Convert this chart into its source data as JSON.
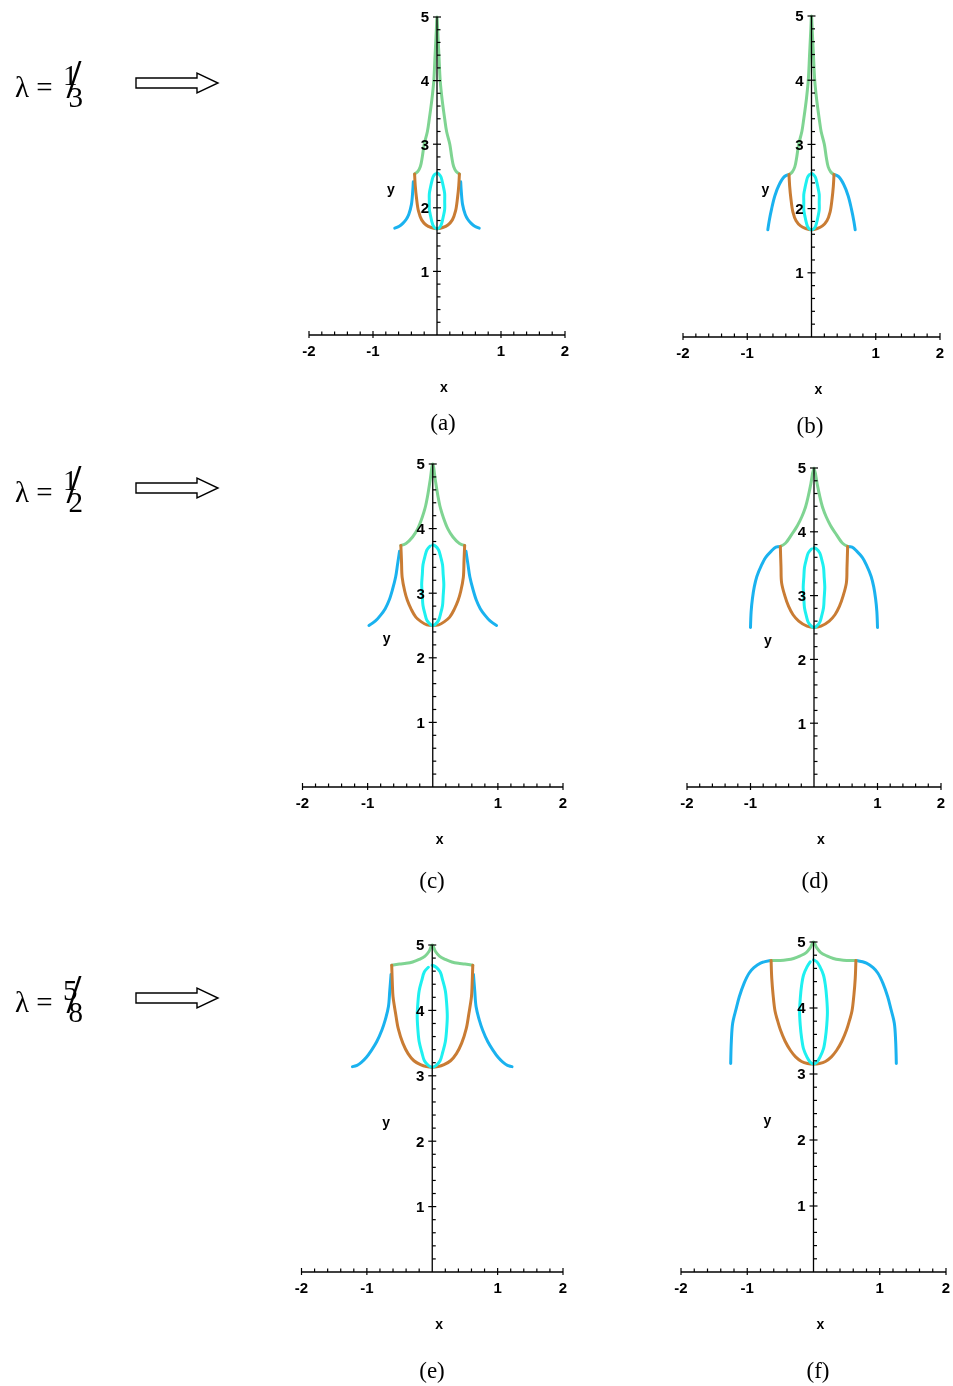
{
  "chart_data": [
    {
      "type": "line",
      "title": "(a)",
      "xlabel": "x",
      "ylabel": "y",
      "annotations": [
        "λ = $^{1}$/$_{3}$"
      ],
      "xlim": [
        -2,
        2
      ],
      "ylim": [
        0,
        5
      ],
      "xticks": [
        -2,
        {
          "value": -1.8,
          "label": null
        },
        {
          "value": -1.6,
          "label": null
        },
        {
          "value": -1.4,
          "label": null
        },
        {
          "value": -1.2,
          "label": null
        },
        -1,
        {
          "value": -0.8,
          "label": null
        },
        {
          "value": -0.6,
          "label": null
        },
        {
          "value": -0.4,
          "label": null
        },
        {
          "value": -0.2,
          "label": null
        },
        {
          "value": 0.2,
          "label": null
        },
        {
          "value": 0.4,
          "label": null
        },
        {
          "value": 0.6,
          "label": null
        },
        {
          "value": 0.8,
          "label": null
        },
        1,
        {
          "value": 1.2,
          "label": null
        },
        {
          "value": 1.4,
          "label": null
        },
        {
          "value": 1.6,
          "label": null
        },
        {
          "value": 1.8,
          "label": null
        },
        2
      ],
      "yticks": [
        {
          "value": 0.2,
          "label": null
        },
        {
          "value": 0.4,
          "label": null
        },
        {
          "value": 0.6,
          "label": null
        },
        {
          "value": 0.8,
          "label": null
        },
        1,
        {
          "value": 1.2,
          "label": null
        },
        {
          "value": 1.4,
          "label": null
        },
        {
          "value": 1.6,
          "label": null
        },
        {
          "value": 1.8,
          "label": null
        },
        2,
        {
          "value": 2.2,
          "label": null
        },
        {
          "value": 2.4,
          "label": null
        },
        {
          "value": 2.6,
          "label": null
        },
        {
          "value": 2.8,
          "label": null
        },
        3,
        {
          "value": 3.2,
          "label": null
        },
        {
          "value": 3.4,
          "label": null
        },
        {
          "value": 3.6,
          "label": null
        },
        {
          "value": 3.8,
          "label": null
        },
        4,
        {
          "value": 4.2,
          "label": null
        },
        {
          "value": 4.4,
          "label": null
        },
        {
          "value": 4.6,
          "label": null
        },
        {
          "value": 4.8,
          "label": null
        },
        5
      ],
      "series": [
        {
          "color": "#1ab2ef",
          "x": [
            -0.66,
            -0.59,
            -0.53,
            -0.48,
            -0.44,
            -0.4,
            -0.38,
            -0.37
          ],
          "values": [
            1.68,
            1.71,
            1.76,
            1.82,
            1.9,
            2.05,
            2.25,
            2.41
          ]
        },
        {
          "color": "#1ab2ef",
          "x": [
            0.37,
            0.38,
            0.4,
            0.44,
            0.48,
            0.53,
            0.59,
            0.66
          ],
          "values": [
            2.41,
            2.25,
            2.05,
            1.9,
            1.82,
            1.76,
            1.71,
            1.68
          ]
        },
        {
          "color": "#7fd492",
          "x": [
            -0.35,
            -0.3,
            -0.26,
            -0.23,
            -0.2,
            -0.15,
            -0.12,
            -0.08,
            -0.05,
            -0.03,
            -0.01,
            0,
            0.01,
            0.03,
            0.05,
            0.08,
            0.12,
            0.15,
            0.2,
            0.23,
            0.26,
            0.3,
            0.35
          ],
          "values": [
            2.53,
            2.57,
            2.65,
            2.8,
            3.0,
            3.2,
            3.4,
            3.7,
            4.0,
            4.4,
            4.8,
            5,
            4.8,
            4.4,
            4.0,
            3.7,
            3.4,
            3.2,
            3.0,
            2.8,
            2.65,
            2.57,
            2.53
          ]
        },
        {
          "color": "#c97c34",
          "x": [
            -0.35,
            -0.34,
            -0.32,
            -0.29,
            -0.24,
            -0.17,
            -0.09,
            0,
            0.09,
            0.17,
            0.24,
            0.29,
            0.32,
            0.34,
            0.35
          ],
          "values": [
            2.53,
            2.35,
            2.15,
            1.95,
            1.81,
            1.73,
            1.69,
            1.67,
            1.69,
            1.73,
            1.81,
            1.95,
            2.15,
            2.35,
            2.53
          ]
        },
        {
          "color": "#1ef0f0",
          "x": [
            0,
            0.03,
            0.06,
            0.08,
            0.1,
            0.12,
            0.12,
            0.12,
            0.1,
            0.08,
            0.06,
            0.03,
            0,
            -0.03,
            -0.06,
            -0.08,
            -0.1,
            -0.12,
            -0.12,
            -0.12,
            -0.1,
            -0.08,
            -0.06,
            -0.03
          ],
          "values": [
            2.55,
            2.53,
            2.49,
            2.42,
            2.33,
            2.22,
            2.1,
            1.98,
            1.87,
            1.78,
            1.72,
            1.68,
            1.67,
            1.68,
            1.72,
            1.78,
            1.87,
            1.98,
            2.1,
            2.22,
            2.33,
            2.42,
            2.49,
            2.53
          ]
        }
      ]
    },
    {
      "type": "line",
      "title": "(b)",
      "xlabel": "x",
      "ylabel": "y",
      "xlim": [
        -2,
        2
      ],
      "ylim": [
        0,
        5
      ],
      "xticks": [
        -2,
        {
          "value": -1.8,
          "label": null
        },
        {
          "value": -1.6,
          "label": null
        },
        {
          "value": -1.4,
          "label": null
        },
        {
          "value": -1.2,
          "label": null
        },
        -1,
        {
          "value": -0.8,
          "label": null
        },
        {
          "value": -0.6,
          "label": null
        },
        {
          "value": -0.4,
          "label": null
        },
        {
          "value": -0.2,
          "label": null
        },
        {
          "value": 0.2,
          "label": null
        },
        {
          "value": 0.4,
          "label": null
        },
        {
          "value": 0.6,
          "label": null
        },
        {
          "value": 0.8,
          "label": null
        },
        1,
        {
          "value": 1.2,
          "label": null
        },
        {
          "value": 1.4,
          "label": null
        },
        {
          "value": 1.6,
          "label": null
        },
        {
          "value": 1.8,
          "label": null
        },
        2
      ],
      "yticks": [
        {
          "value": 0.2,
          "label": null
        },
        {
          "value": 0.4,
          "label": null
        },
        {
          "value": 0.6,
          "label": null
        },
        {
          "value": 0.8,
          "label": null
        },
        1,
        {
          "value": 1.2,
          "label": null
        },
        {
          "value": 1.4,
          "label": null
        },
        {
          "value": 1.6,
          "label": null
        },
        {
          "value": 1.8,
          "label": null
        },
        2,
        {
          "value": 2.2,
          "label": null
        },
        {
          "value": 2.4,
          "label": null
        },
        {
          "value": 2.6,
          "label": null
        },
        {
          "value": 2.8,
          "label": null
        },
        3,
        {
          "value": 3.2,
          "label": null
        },
        {
          "value": 3.4,
          "label": null
        },
        {
          "value": 3.6,
          "label": null
        },
        {
          "value": 3.8,
          "label": null
        },
        4,
        {
          "value": 4.2,
          "label": null
        },
        {
          "value": 4.4,
          "label": null
        },
        {
          "value": 4.6,
          "label": null
        },
        {
          "value": 4.8,
          "label": null
        },
        5
      ],
      "series": [
        {
          "color": "#1ab2ef",
          "x": [
            -0.68,
            -0.66,
            -0.62,
            -0.57,
            -0.5,
            -0.42,
            -0.35
          ],
          "values": [
            1.67,
            1.8,
            2.0,
            2.2,
            2.38,
            2.5,
            2.53
          ]
        },
        {
          "color": "#1ab2ef",
          "x": [
            0.35,
            0.42,
            0.5,
            0.57,
            0.62,
            0.66,
            0.68
          ],
          "values": [
            2.53,
            2.5,
            2.38,
            2.2,
            2.0,
            1.8,
            1.67
          ]
        },
        {
          "color": "#7fd492",
          "x": [
            -0.35,
            -0.3,
            -0.26,
            -0.23,
            -0.2,
            -0.15,
            -0.12,
            -0.08,
            -0.05,
            -0.03,
            -0.01,
            0,
            0.01,
            0.03,
            0.05,
            0.08,
            0.12,
            0.15,
            0.2,
            0.23,
            0.26,
            0.3,
            0.35
          ],
          "values": [
            2.53,
            2.57,
            2.65,
            2.8,
            3.0,
            3.2,
            3.4,
            3.7,
            4.0,
            4.4,
            4.8,
            5,
            4.8,
            4.4,
            4.0,
            3.7,
            3.4,
            3.2,
            3.0,
            2.8,
            2.65,
            2.57,
            2.53
          ]
        },
        {
          "color": "#c97c34",
          "x": [
            -0.35,
            -0.34,
            -0.32,
            -0.29,
            -0.24,
            -0.17,
            -0.09,
            0,
            0.09,
            0.17,
            0.24,
            0.29,
            0.32,
            0.34,
            0.35
          ],
          "values": [
            2.53,
            2.35,
            2.15,
            1.95,
            1.81,
            1.73,
            1.69,
            1.67,
            1.69,
            1.73,
            1.81,
            1.95,
            2.15,
            2.35,
            2.53
          ]
        },
        {
          "color": "#1ef0f0",
          "x": [
            0,
            0.03,
            0.06,
            0.08,
            0.1,
            0.12,
            0.12,
            0.12,
            0.1,
            0.08,
            0.06,
            0.03,
            0,
            -0.03,
            -0.06,
            -0.08,
            -0.1,
            -0.12,
            -0.12,
            -0.12,
            -0.1,
            -0.08,
            -0.06,
            -0.03
          ],
          "values": [
            2.55,
            2.53,
            2.49,
            2.42,
            2.33,
            2.22,
            2.1,
            1.98,
            1.87,
            1.78,
            1.72,
            1.68,
            1.67,
            1.68,
            1.72,
            1.78,
            1.87,
            1.98,
            2.1,
            2.22,
            2.33,
            2.42,
            2.49,
            2.53
          ]
        }
      ]
    },
    {
      "type": "line",
      "title": "(c)",
      "xlabel": "x",
      "ylabel": "y",
      "annotations": [
        "λ = $^{1}$/$_{2}$"
      ],
      "xlim": [
        -2,
        2
      ],
      "ylim": [
        0,
        5
      ],
      "xticks": [
        -2,
        {
          "value": -1.8,
          "label": null
        },
        {
          "value": -1.6,
          "label": null
        },
        {
          "value": -1.4,
          "label": null
        },
        {
          "value": -1.2,
          "label": null
        },
        -1,
        {
          "value": -0.8,
          "label": null
        },
        {
          "value": -0.6,
          "label": null
        },
        {
          "value": -0.4,
          "label": null
        },
        {
          "value": -0.2,
          "label": null
        },
        {
          "value": 0.2,
          "label": null
        },
        {
          "value": 0.4,
          "label": null
        },
        {
          "value": 0.6,
          "label": null
        },
        {
          "value": 0.8,
          "label": null
        },
        1,
        {
          "value": 1.2,
          "label": null
        },
        {
          "value": 1.4,
          "label": null
        },
        {
          "value": 1.6,
          "label": null
        },
        {
          "value": 1.8,
          "label": null
        },
        2
      ],
      "yticks": [
        {
          "value": 0.2,
          "label": null
        },
        {
          "value": 0.4,
          "label": null
        },
        {
          "value": 0.6,
          "label": null
        },
        {
          "value": 0.8,
          "label": null
        },
        1,
        {
          "value": 1.2,
          "label": null
        },
        {
          "value": 1.4,
          "label": null
        },
        {
          "value": 1.6,
          "label": null
        },
        {
          "value": 1.8,
          "label": null
        },
        2,
        {
          "value": 2.2,
          "label": null
        },
        {
          "value": 2.4,
          "label": null
        },
        {
          "value": 2.6,
          "label": null
        },
        {
          "value": 2.8,
          "label": null
        },
        3,
        {
          "value": 3.2,
          "label": null
        },
        {
          "value": 3.4,
          "label": null
        },
        {
          "value": 3.6,
          "label": null
        },
        {
          "value": 3.8,
          "label": null
        },
        4,
        {
          "value": 4.2,
          "label": null
        },
        {
          "value": 4.4,
          "label": null
        },
        {
          "value": 4.6,
          "label": null
        },
        {
          "value": 4.8,
          "label": null
        },
        5
      ],
      "series": [
        {
          "color": "#1ab2ef",
          "x": [
            -0.98,
            -0.88,
            -0.8,
            -0.73,
            -0.67,
            -0.62,
            -0.57,
            -0.54,
            -0.51
          ],
          "values": [
            2.5,
            2.57,
            2.66,
            2.76,
            2.89,
            3.05,
            3.25,
            3.45,
            3.65
          ]
        },
        {
          "color": "#1ab2ef",
          "x": [
            0.51,
            0.54,
            0.57,
            0.62,
            0.67,
            0.73,
            0.8,
            0.88,
            0.98
          ],
          "values": [
            3.65,
            3.45,
            3.25,
            3.05,
            2.89,
            2.76,
            2.66,
            2.57,
            2.5
          ]
        },
        {
          "color": "#7fd492",
          "x": [
            -0.49,
            -0.41,
            -0.31,
            -0.23,
            -0.16,
            -0.11,
            -0.08,
            -0.04,
            0,
            0.04,
            0.08,
            0.11,
            0.16,
            0.23,
            0.31,
            0.41,
            0.49
          ],
          "values": [
            3.74,
            3.77,
            3.87,
            4.0,
            4.18,
            4.35,
            4.5,
            4.75,
            5,
            4.75,
            4.5,
            4.35,
            4.18,
            4.0,
            3.87,
            3.77,
            3.74
          ]
        },
        {
          "color": "#c97c34",
          "x": [
            -0.49,
            -0.48,
            -0.47,
            -0.43,
            -0.39,
            -0.33,
            -0.26,
            -0.18,
            -0.09,
            0,
            0.09,
            0.18,
            0.26,
            0.33,
            0.39,
            0.43,
            0.47,
            0.48,
            0.49
          ],
          "values": [
            3.74,
            3.5,
            3.25,
            3.03,
            2.89,
            2.75,
            2.63,
            2.56,
            2.51,
            2.5,
            2.51,
            2.56,
            2.63,
            2.75,
            2.89,
            3.03,
            3.25,
            3.5,
            3.74
          ]
        },
        {
          "color": "#1ef0f0",
          "x": [
            0,
            0.04,
            0.09,
            0.12,
            0.15,
            0.16,
            0.17,
            0.16,
            0.15,
            0.12,
            0.09,
            0.04,
            0,
            -0.04,
            -0.09,
            -0.12,
            -0.15,
            -0.16,
            -0.17,
            -0.16,
            -0.15,
            -0.12,
            -0.09,
            -0.04
          ],
          "values": [
            3.75,
            3.73,
            3.67,
            3.57,
            3.44,
            3.29,
            3.13,
            2.96,
            2.81,
            2.68,
            2.58,
            2.52,
            2.5,
            2.52,
            2.58,
            2.68,
            2.81,
            2.96,
            3.13,
            3.29,
            3.44,
            3.57,
            3.67,
            3.73
          ]
        }
      ]
    },
    {
      "type": "line",
      "title": "(d)",
      "xlabel": "x",
      "ylabel": "y",
      "xlim": [
        -2,
        2
      ],
      "ylim": [
        0,
        5
      ],
      "xticks": [
        -2,
        {
          "value": -1.8,
          "label": null
        },
        {
          "value": -1.6,
          "label": null
        },
        {
          "value": -1.4,
          "label": null
        },
        {
          "value": -1.2,
          "label": null
        },
        -1,
        {
          "value": -0.8,
          "label": null
        },
        {
          "value": -0.6,
          "label": null
        },
        {
          "value": -0.4,
          "label": null
        },
        {
          "value": -0.2,
          "label": null
        },
        {
          "value": 0.2,
          "label": null
        },
        {
          "value": 0.4,
          "label": null
        },
        {
          "value": 0.6,
          "label": null
        },
        {
          "value": 0.8,
          "label": null
        },
        1,
        {
          "value": 1.2,
          "label": null
        },
        {
          "value": 1.4,
          "label": null
        },
        {
          "value": 1.6,
          "label": null
        },
        {
          "value": 1.8,
          "label": null
        },
        2
      ],
      "yticks": [
        {
          "value": 0.2,
          "label": null
        },
        {
          "value": 0.4,
          "label": null
        },
        {
          "value": 0.6,
          "label": null
        },
        {
          "value": 0.8,
          "label": null
        },
        1,
        {
          "value": 1.2,
          "label": null
        },
        {
          "value": 1.4,
          "label": null
        },
        {
          "value": 1.6,
          "label": null
        },
        {
          "value": 1.8,
          "label": null
        },
        2,
        {
          "value": 2.2,
          "label": null
        },
        {
          "value": 2.4,
          "label": null
        },
        {
          "value": 2.6,
          "label": null
        },
        {
          "value": 2.8,
          "label": null
        },
        3,
        {
          "value": 3.2,
          "label": null
        },
        {
          "value": 3.4,
          "label": null
        },
        {
          "value": 3.6,
          "label": null
        },
        {
          "value": 3.8,
          "label": null
        },
        4,
        {
          "value": 4.2,
          "label": null
        },
        {
          "value": 4.4,
          "label": null
        },
        {
          "value": 4.6,
          "label": null
        },
        {
          "value": 4.8,
          "label": null
        },
        5
      ],
      "series": [
        {
          "color": "#1ab2ef",
          "x": [
            -1.0,
            -0.99,
            -0.97,
            -0.94,
            -0.9,
            -0.83,
            -0.76,
            -0.68,
            -0.6,
            -0.53
          ],
          "values": [
            2.5,
            2.75,
            2.95,
            3.14,
            3.3,
            3.47,
            3.6,
            3.69,
            3.76,
            3.77
          ]
        },
        {
          "color": "#1ab2ef",
          "x": [
            0.53,
            0.6,
            0.68,
            0.76,
            0.83,
            0.9,
            0.94,
            0.97,
            0.99,
            1.0
          ],
          "values": [
            3.77,
            3.76,
            3.69,
            3.6,
            3.47,
            3.3,
            3.14,
            2.95,
            2.75,
            2.5
          ]
        },
        {
          "color": "#7fd492",
          "x": [
            -0.53,
            -0.45,
            -0.35,
            -0.26,
            -0.19,
            -0.13,
            -0.09,
            -0.05,
            0,
            0.05,
            0.09,
            0.13,
            0.19,
            0.26,
            0.35,
            0.45,
            0.53
          ],
          "values": [
            3.77,
            3.82,
            3.96,
            4.1,
            4.24,
            4.4,
            4.56,
            4.75,
            5,
            4.75,
            4.56,
            4.4,
            4.24,
            4.1,
            3.96,
            3.82,
            3.77
          ]
        },
        {
          "color": "#c97c34",
          "x": [
            -0.53,
            -0.52,
            -0.51,
            -0.46,
            -0.4,
            -0.33,
            -0.24,
            -0.11,
            0,
            0.11,
            0.24,
            0.33,
            0.4,
            0.46,
            0.51,
            0.52,
            0.53
          ],
          "values": [
            3.77,
            3.45,
            3.2,
            3.0,
            2.83,
            2.7,
            2.6,
            2.52,
            2.5,
            2.52,
            2.6,
            2.7,
            2.83,
            3.0,
            3.2,
            3.45,
            3.77
          ]
        },
        {
          "color": "#1ef0f0",
          "x": [
            0,
            0.04,
            0.09,
            0.12,
            0.15,
            0.16,
            0.17,
            0.16,
            0.15,
            0.12,
            0.09,
            0.04,
            0,
            -0.04,
            -0.09,
            -0.12,
            -0.15,
            -0.16,
            -0.17,
            -0.16,
            -0.15,
            -0.12,
            -0.09,
            -0.04
          ],
          "values": [
            3.75,
            3.73,
            3.67,
            3.57,
            3.44,
            3.29,
            3.13,
            2.96,
            2.81,
            2.68,
            2.58,
            2.52,
            2.5,
            2.52,
            2.58,
            2.68,
            2.81,
            2.96,
            3.13,
            3.29,
            3.44,
            3.57,
            3.67,
            3.73
          ]
        }
      ]
    },
    {
      "type": "line",
      "title": "(e)",
      "xlabel": "x",
      "ylabel": "y",
      "annotations": [
        "λ = $^{5}$/$_{8}$"
      ],
      "xlim": [
        -2,
        2
      ],
      "ylim": [
        0,
        5
      ],
      "xticks": [
        -2,
        {
          "value": -1.8,
          "label": null
        },
        {
          "value": -1.6,
          "label": null
        },
        {
          "value": -1.4,
          "label": null
        },
        {
          "value": -1.2,
          "label": null
        },
        -1,
        {
          "value": -0.8,
          "label": null
        },
        {
          "value": -0.6,
          "label": null
        },
        {
          "value": -0.4,
          "label": null
        },
        {
          "value": -0.2,
          "label": null
        },
        {
          "value": 0.2,
          "label": null
        },
        {
          "value": 0.4,
          "label": null
        },
        {
          "value": 0.6,
          "label": null
        },
        {
          "value": 0.8,
          "label": null
        },
        1,
        {
          "value": 1.2,
          "label": null
        },
        {
          "value": 1.4,
          "label": null
        },
        {
          "value": 1.6,
          "label": null
        },
        {
          "value": 1.8,
          "label": null
        },
        2
      ],
      "yticks": [
        {
          "value": 0.2,
          "label": null
        },
        {
          "value": 0.4,
          "label": null
        },
        {
          "value": 0.6,
          "label": null
        },
        {
          "value": 0.8,
          "label": null
        },
        1,
        {
          "value": 1.2,
          "label": null
        },
        {
          "value": 1.4,
          "label": null
        },
        {
          "value": 1.6,
          "label": null
        },
        {
          "value": 1.8,
          "label": null
        },
        2,
        {
          "value": 2.2,
          "label": null
        },
        {
          "value": 2.4,
          "label": null
        },
        {
          "value": 2.6,
          "label": null
        },
        {
          "value": 2.8,
          "label": null
        },
        3,
        {
          "value": 3.2,
          "label": null
        },
        {
          "value": 3.4,
          "label": null
        },
        {
          "value": 3.6,
          "label": null
        },
        {
          "value": 3.8,
          "label": null
        },
        4,
        {
          "value": 4.2,
          "label": null
        },
        {
          "value": 4.4,
          "label": null
        },
        {
          "value": 4.6,
          "label": null
        },
        {
          "value": 4.8,
          "label": null
        },
        5
      ],
      "series": [
        {
          "color": "#1ab2ef",
          "x": [
            -1.22,
            -1.15,
            -1.08,
            -1.01,
            -0.93,
            -0.85,
            -0.77,
            -0.72,
            -0.67,
            -0.65,
            -0.63
          ],
          "values": [
            3.14,
            3.16,
            3.21,
            3.28,
            3.39,
            3.52,
            3.7,
            3.85,
            4.06,
            4.3,
            4.55
          ]
        },
        {
          "color": "#1ab2ef",
          "x": [
            0.63,
            0.65,
            0.67,
            0.72,
            0.77,
            0.85,
            0.93,
            1.01,
            1.08,
            1.15,
            1.22
          ],
          "values": [
            4.55,
            4.3,
            4.06,
            3.85,
            3.7,
            3.52,
            3.39,
            3.28,
            3.21,
            3.16,
            3.14
          ]
        },
        {
          "color": "#7fd492",
          "x": [
            -0.62,
            -0.5,
            -0.4,
            -0.3,
            -0.2,
            -0.11,
            -0.05,
            0,
            0.05,
            0.11,
            0.2,
            0.3,
            0.4,
            0.5,
            0.62
          ],
          "values": [
            4.69,
            4.71,
            4.72,
            4.74,
            4.78,
            4.83,
            4.9,
            5,
            4.9,
            4.83,
            4.78,
            4.74,
            4.72,
            4.71,
            4.69
          ]
        },
        {
          "color": "#c97c34",
          "x": [
            -0.62,
            -0.61,
            -0.6,
            -0.56,
            -0.52,
            -0.45,
            -0.37,
            -0.28,
            -0.18,
            -0.09,
            0,
            0.09,
            0.18,
            0.28,
            0.37,
            0.45,
            0.52,
            0.56,
            0.6,
            0.61,
            0.62
          ],
          "values": [
            4.69,
            4.4,
            4.21,
            3.95,
            3.72,
            3.5,
            3.34,
            3.23,
            3.17,
            3.14,
            3.13,
            3.14,
            3.17,
            3.23,
            3.34,
            3.5,
            3.72,
            3.95,
            4.21,
            4.4,
            4.69
          ]
        },
        {
          "color": "#1ef0f0",
          "x": [
            0,
            0.06,
            0.12,
            0.16,
            0.2,
            0.22,
            0.23,
            0.22,
            0.2,
            0.16,
            0.12,
            0.06,
            0,
            -0.06,
            -0.12,
            -0.16,
            -0.2,
            -0.22,
            -0.23,
            -0.22,
            -0.2,
            -0.16,
            -0.12,
            -0.06
          ],
          "values": [
            4.69,
            4.66,
            4.59,
            4.46,
            4.3,
            4.11,
            3.91,
            3.71,
            3.52,
            3.36,
            3.23,
            3.16,
            3.13,
            3.16,
            3.23,
            3.36,
            3.52,
            3.71,
            3.91,
            4.11,
            4.3,
            4.46,
            4.59,
            4.66
          ]
        }
      ]
    },
    {
      "type": "line",
      "title": "(f)",
      "xlabel": "x",
      "ylabel": "y",
      "xlim": [
        -2,
        2
      ],
      "ylim": [
        0,
        5
      ],
      "xticks": [
        -2,
        {
          "value": -1.8,
          "label": null
        },
        {
          "value": -1.6,
          "label": null
        },
        {
          "value": -1.4,
          "label": null
        },
        {
          "value": -1.2,
          "label": null
        },
        -1,
        {
          "value": -0.8,
          "label": null
        },
        {
          "value": -0.6,
          "label": null
        },
        {
          "value": -0.4,
          "label": null
        },
        {
          "value": -0.2,
          "label": null
        },
        {
          "value": 0.2,
          "label": null
        },
        {
          "value": 0.4,
          "label": null
        },
        {
          "value": 0.6,
          "label": null
        },
        {
          "value": 0.8,
          "label": null
        },
        1,
        {
          "value": 1.2,
          "label": null
        },
        {
          "value": 1.4,
          "label": null
        },
        {
          "value": 1.6,
          "label": null
        },
        {
          "value": 1.8,
          "label": null
        },
        2
      ],
      "yticks": [
        {
          "value": 0.2,
          "label": null
        },
        {
          "value": 0.4,
          "label": null
        },
        {
          "value": 0.6,
          "label": null
        },
        {
          "value": 0.8,
          "label": null
        },
        1,
        {
          "value": 1.2,
          "label": null
        },
        {
          "value": 1.4,
          "label": null
        },
        {
          "value": 1.6,
          "label": null
        },
        {
          "value": 1.8,
          "label": null
        },
        2,
        {
          "value": 2.2,
          "label": null
        },
        {
          "value": 2.4,
          "label": null
        },
        {
          "value": 2.6,
          "label": null
        },
        {
          "value": 2.8,
          "label": null
        },
        3,
        {
          "value": 3.2,
          "label": null
        },
        {
          "value": 3.4,
          "label": null
        },
        {
          "value": 3.6,
          "label": null
        },
        {
          "value": 3.8,
          "label": null
        },
        4,
        {
          "value": 4.2,
          "label": null
        },
        {
          "value": 4.4,
          "label": null
        },
        {
          "value": 4.6,
          "label": null
        },
        {
          "value": 4.8,
          "label": null
        },
        5
      ],
      "series": [
        {
          "color": "#1ab2ef",
          "x": [
            -1.25,
            -1.24,
            -1.22,
            -1.17,
            -1.12,
            -1.05,
            -0.97,
            -0.9,
            -0.8,
            -0.65
          ],
          "values": [
            3.16,
            3.5,
            3.77,
            3.98,
            4.17,
            4.37,
            4.53,
            4.61,
            4.68,
            4.72
          ]
        },
        {
          "color": "#1ab2ef",
          "x": [
            0.65,
            0.8,
            0.9,
            0.97,
            1.05,
            1.12,
            1.17,
            1.22,
            1.24,
            1.25
          ],
          "values": [
            4.72,
            4.68,
            4.61,
            4.53,
            4.37,
            4.17,
            3.98,
            3.77,
            3.5,
            3.16
          ]
        },
        {
          "color": "#7fd492",
          "x": [
            -0.64,
            -0.5,
            -0.4,
            -0.3,
            -0.2,
            -0.11,
            -0.05,
            0,
            0.05,
            0.11,
            0.2,
            0.3,
            0.4,
            0.5,
            0.64
          ],
          "values": [
            4.72,
            4.72,
            4.73,
            4.75,
            4.79,
            4.84,
            4.91,
            5,
            4.91,
            4.84,
            4.79,
            4.75,
            4.73,
            4.72,
            4.72
          ]
        },
        {
          "color": "#c97c34",
          "x": [
            -0.64,
            -0.63,
            -0.61,
            -0.58,
            -0.54,
            -0.5,
            -0.43,
            -0.35,
            -0.27,
            -0.18,
            -0.09,
            0,
            0.09,
            0.18,
            0.27,
            0.35,
            0.43,
            0.5,
            0.54,
            0.58,
            0.61,
            0.63,
            0.64
          ],
          "values": [
            4.72,
            4.45,
            4.2,
            3.95,
            3.8,
            3.67,
            3.5,
            3.36,
            3.26,
            3.19,
            3.16,
            3.15,
            3.16,
            3.19,
            3.26,
            3.36,
            3.5,
            3.67,
            3.8,
            3.95,
            4.2,
            4.45,
            4.72
          ]
        },
        {
          "color": "#1ef0f0",
          "x": [
            0,
            0.05,
            0.1,
            0.15,
            0.18,
            0.2,
            0.21,
            0.2,
            0.18,
            0.15,
            0.1,
            0.05,
            0,
            -0.05,
            -0.1,
            -0.15,
            -0.18,
            -0.2,
            -0.21,
            -0.2,
            -0.18,
            -0.15,
            -0.1,
            -0.05
          ],
          "values": [
            4.73,
            4.7,
            4.62,
            4.5,
            4.34,
            4.14,
            3.94,
            3.74,
            3.55,
            3.38,
            3.26,
            3.18,
            3.15,
            3.18,
            3.26,
            3.38,
            3.55,
            3.74,
            3.94,
            4.14,
            4.34,
            4.5,
            4.62,
            4.7
          ]
        }
      ]
    }
  ]
}
